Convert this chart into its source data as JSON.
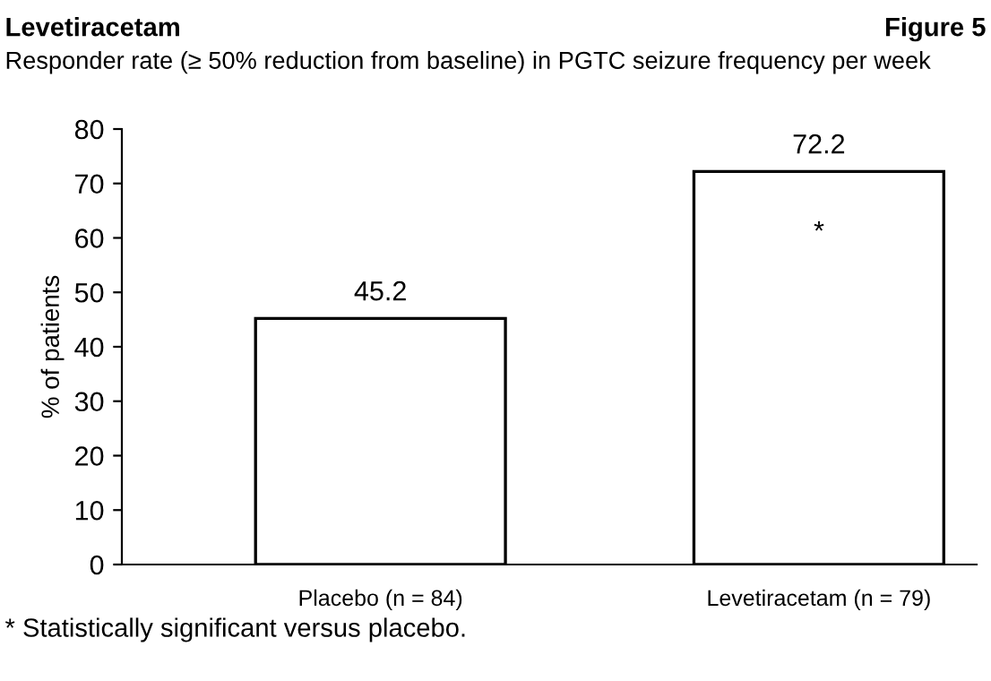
{
  "chart_data": {
    "type": "bar",
    "title": "Levetiracetam",
    "subtitle": "Responder rate (≥ 50% reduction from baseline) in PGTC seizure frequency per week",
    "ylabel": "% of patients",
    "categories": [
      "Placebo (n = 84)",
      "Levetiracetam (n = 79)"
    ],
    "values": [
      45.2,
      72.2
    ],
    "color": "#ffffff",
    "data_labels": true,
    "ylim": [
      0,
      80
    ],
    "yticks": [
      0,
      10,
      20,
      30,
      40,
      50,
      60,
      70,
      80
    ],
    "grid": false,
    "legend": false,
    "annotations": [
      "Figure 5",
      "*",
      "* Statistically significant versus placebo."
    ]
  }
}
